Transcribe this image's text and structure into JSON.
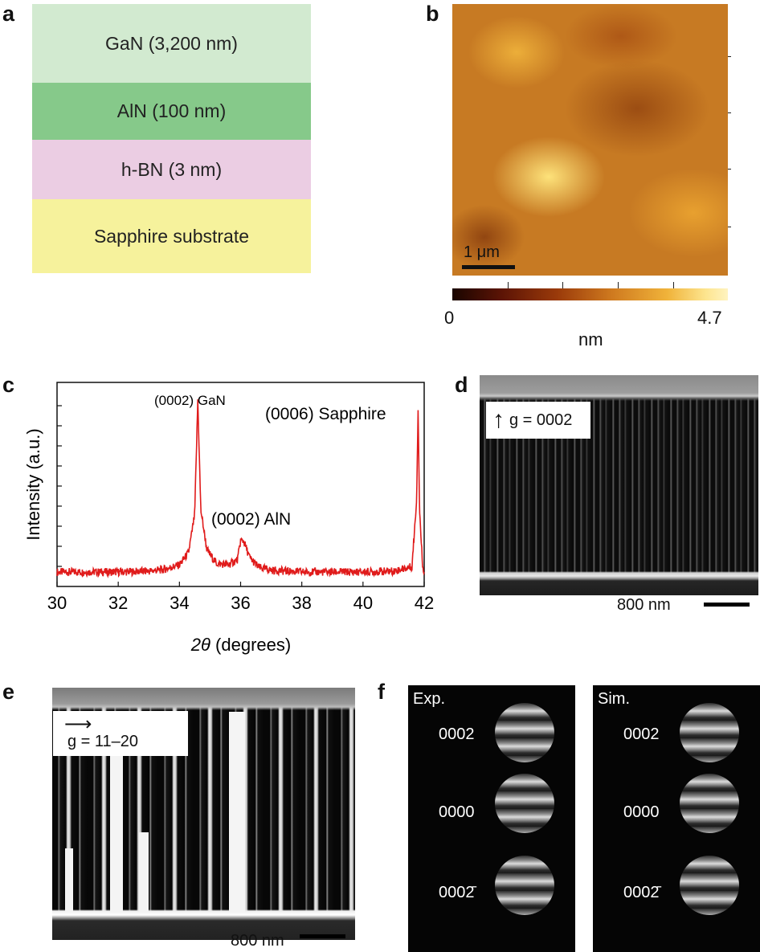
{
  "panels": {
    "a": "a",
    "b": "b",
    "c": "c",
    "d": "d",
    "e": "e",
    "f": "f"
  },
  "layers": [
    {
      "label": "GaN (3,200 nm)",
      "color": "#d2ead0"
    },
    {
      "label": "AlN (100 nm)",
      "color": "#86c98a"
    },
    {
      "label": "h-BN (3 nm)",
      "color": "#ebcde3"
    },
    {
      "label": "Sapphire substrate",
      "color": "#f6f29c"
    }
  ],
  "afm": {
    "scalebar": "1 μm",
    "colorbar_min": "0",
    "colorbar_max": "4.7",
    "colorbar_unit": "nm"
  },
  "chart_data": {
    "type": "line",
    "title": "",
    "xlabel": "2θ (degrees)",
    "ylabel": "Intensity (a.u.)",
    "xlim": [
      30,
      42
    ],
    "xticks": [
      30,
      32,
      34,
      36,
      38,
      40,
      42
    ],
    "grid": false,
    "series": [
      {
        "color": "#e01b1b",
        "x": [
          30,
          31,
          32,
          33,
          33.5,
          34.0,
          34.3,
          34.5,
          34.6,
          34.7,
          34.9,
          35.2,
          35.6,
          35.9,
          36.0,
          36.1,
          36.3,
          36.6,
          37,
          38,
          39,
          40,
          41,
          41.6,
          41.75,
          41.8,
          41.85,
          41.95,
          42
        ],
        "y": [
          1.0,
          1.0,
          1.0,
          1.1,
          1.3,
          1.8,
          3.2,
          7.5,
          20.5,
          8.0,
          3.5,
          2.0,
          1.8,
          2.4,
          4.6,
          4.5,
          2.6,
          1.5,
          1.2,
          1.0,
          1.0,
          1.0,
          1.1,
          1.6,
          9.0,
          19.5,
          8.0,
          1.5,
          1.2
        ]
      }
    ],
    "annotations": [
      "(0002) GaN",
      "(0006) Sapphire",
      "(0002) AlN"
    ]
  },
  "tem_d": {
    "gvector": "g = 0002",
    "scalebar": "800 nm"
  },
  "tem_e": {
    "gvector": "g = 11–20",
    "scalebar": "800 nm"
  },
  "cbed": {
    "exp_label": "Exp.",
    "sim_label": "Sim.",
    "reflections": [
      "0002",
      "0000",
      "0002̄"
    ]
  }
}
